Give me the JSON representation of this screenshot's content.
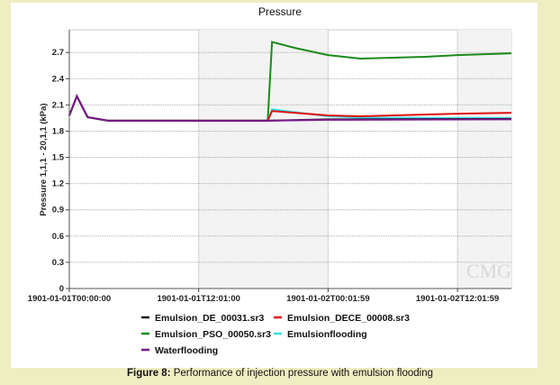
{
  "chart_data": {
    "type": "line",
    "title": "Pressure",
    "xlabel": "",
    "ylabel": "Pressure 1,1,1 - 20,1,1 (kPa)",
    "ylim": [
      0,
      2.96
    ],
    "xlim_hours": [
      0,
      41
    ],
    "yticks": [
      0,
      0.3,
      0.6,
      0.9,
      1.2,
      1.5,
      1.8,
      2.1,
      2.4,
      2.7
    ],
    "ytick_labels": [
      "0",
      "0.3",
      "0.6",
      "0.9",
      "1.2",
      "1.5",
      "1.8",
      "2.1",
      "2.4",
      "2.7"
    ],
    "xticks_hours": [
      0,
      12,
      24,
      36
    ],
    "xtick_labels": [
      "1901-01-01T00:00:00",
      "1901-01-01T12:01:00",
      "1901-01-02T00:01:59",
      "1901-01-02T12:01:59"
    ],
    "grid": true,
    "legend_placement": "bottom",
    "series": [
      {
        "name": "Emulsion_DE_00031.sr3",
        "color": "#111111",
        "x": [
          0,
          0.7,
          1.7,
          3.6,
          18.4,
          24,
          41
        ],
        "y": [
          1.98,
          2.2,
          1.96,
          1.92,
          1.92,
          1.935,
          1.94
        ]
      },
      {
        "name": "Emulsion_DECE_00008.sr3",
        "color": "#e01010",
        "x": [
          0,
          0.7,
          1.7,
          3.6,
          18.4,
          18.8,
          24,
          27,
          30,
          36,
          41
        ],
        "y": [
          1.98,
          2.2,
          1.96,
          1.92,
          1.92,
          2.03,
          1.98,
          1.97,
          1.98,
          2.0,
          2.01
        ]
      },
      {
        "name": "Emulsion_PSO_00050.sr3",
        "color": "#1a8a1a",
        "x": [
          0,
          0.7,
          1.7,
          3.6,
          18.4,
          18.8,
          21,
          24,
          27,
          30,
          33,
          36,
          41
        ],
        "y": [
          1.98,
          2.2,
          1.96,
          1.92,
          1.92,
          2.82,
          2.75,
          2.67,
          2.63,
          2.64,
          2.65,
          2.67,
          2.69
        ]
      },
      {
        "name": "Emulsionflooding",
        "color": "#35e0e6",
        "x": [
          0,
          0.7,
          1.7,
          3.6,
          18.4,
          18.8,
          24,
          27,
          41
        ],
        "y": [
          1.98,
          2.2,
          1.96,
          1.92,
          1.92,
          2.05,
          1.97,
          1.955,
          1.95
        ]
      },
      {
        "name": "Waterflooding",
        "color": "#7a1a8a",
        "x": [
          0,
          0.7,
          1.7,
          3.6,
          18.4,
          24,
          41
        ],
        "y": [
          1.98,
          2.2,
          1.96,
          1.92,
          1.92,
          1.93,
          1.935
        ]
      }
    ]
  },
  "watermark": "CMG",
  "caption": {
    "label": "Figure 8:",
    "text": " Performance of injection pressure with emulsion flooding"
  }
}
